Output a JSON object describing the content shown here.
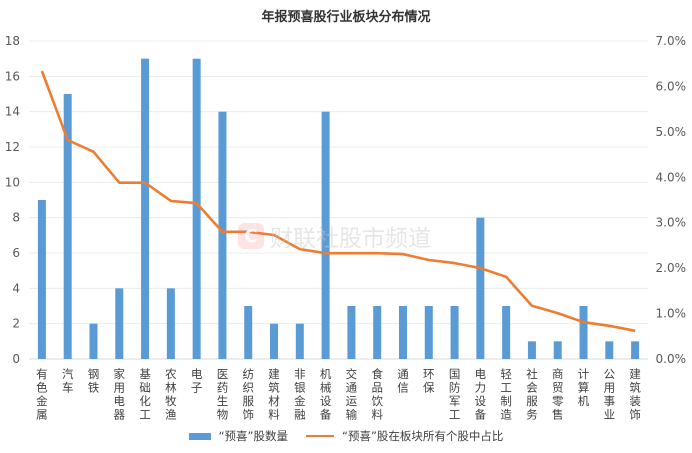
{
  "chart_data": {
    "type": "bar+line",
    "title": "年报预喜股行业板块分布情况",
    "xlabel": "",
    "ylabel": "",
    "categories": [
      "有色金属",
      "汽车",
      "钢铁",
      "家用电器",
      "基础化工",
      "农林牧渔",
      "电子",
      "医药生物",
      "纺织服饰",
      "建筑材料",
      "非银金融",
      "机械设备",
      "交通运输",
      "食品饮料",
      "通信",
      "环保",
      "国防军工",
      "电力设备",
      "轻工制造",
      "社会服务",
      "商贸零售",
      "计算机",
      "公用事业",
      "建筑装饰"
    ],
    "series": [
      {
        "name": "“预喜”股数量",
        "type": "bar",
        "axis": "left",
        "color": "#5B9BD5",
        "values": [
          9,
          15,
          2,
          4,
          17,
          4,
          17,
          14,
          3,
          2,
          2,
          14,
          3,
          3,
          3,
          3,
          3,
          8,
          3,
          1,
          1,
          3,
          1,
          1
        ]
      },
      {
        "name": "“预喜”股在板块所有个股中占比",
        "type": "line",
        "axis": "right",
        "color": "#ED7D31",
        "unit": "%",
        "values": [
          6.34,
          4.82,
          4.56,
          3.88,
          3.88,
          3.48,
          3.43,
          2.8,
          2.8,
          2.73,
          2.42,
          2.33,
          2.33,
          2.33,
          2.31,
          2.18,
          2.11,
          2.0,
          1.81,
          1.17,
          1.01,
          0.81,
          0.73,
          0.62
        ]
      }
    ],
    "left_axis": {
      "ylim": [
        0,
        18
      ],
      "ticks": [
        "0",
        "2",
        "4",
        "6",
        "8",
        "10",
        "12",
        "14",
        "16",
        "18"
      ]
    },
    "right_axis": {
      "ylim": [
        0,
        7
      ],
      "ticks": [
        "0.0%",
        "1.0%",
        "2.0%",
        "3.0%",
        "4.0%",
        "5.0%",
        "6.0%",
        "7.0%"
      ]
    },
    "grid": true,
    "legend_position": "bottom"
  },
  "legend": {
    "bar_label": "“预喜”股数量",
    "line_label": "“预喜”股在板块所有个股中占比"
  },
  "watermark": {
    "logo": "C",
    "text": "财联社股市频道"
  }
}
